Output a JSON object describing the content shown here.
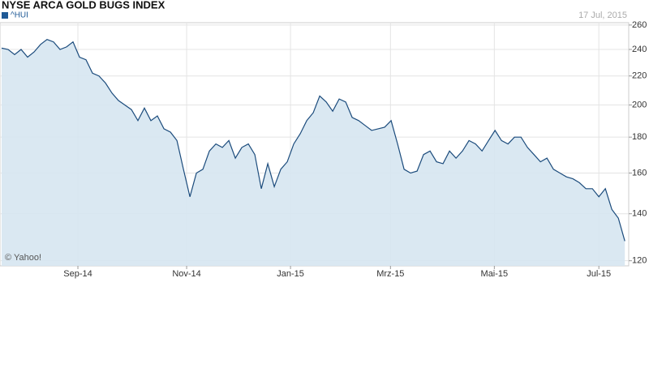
{
  "chart_data": {
    "type": "area",
    "title": "NYSE ARCA GOLD BUGS INDEX",
    "date_label": "17 Jul, 2015",
    "watermark": "© Yahoo!",
    "series": [
      {
        "name": "^HUI",
        "color": "#1b4b7c",
        "fill": "#d6e5f1",
        "values": [
          241,
          240,
          236,
          240,
          234,
          238,
          244,
          248,
          246,
          240,
          242,
          246,
          234,
          232,
          222,
          220,
          215,
          208,
          203,
          200,
          197,
          190,
          198,
          190,
          193,
          185,
          183,
          178,
          162,
          148,
          160,
          162,
          172,
          176,
          174,
          178,
          168,
          174,
          176,
          170,
          152,
          165,
          153,
          162,
          166,
          176,
          182,
          190,
          195,
          206,
          202,
          196,
          204,
          202,
          192,
          190,
          187,
          184,
          185,
          186,
          190,
          176,
          162,
          160,
          161,
          170,
          172,
          166,
          165,
          172,
          168,
          172,
          178,
          176,
          172,
          178,
          184,
          178,
          176,
          180,
          180,
          174,
          170,
          166,
          168,
          162,
          160,
          158,
          157,
          155,
          152,
          152,
          148,
          152,
          142,
          138,
          128
        ]
      }
    ],
    "xlim": [
      0,
      96.6
    ],
    "xticks": [
      {
        "value": 11.75,
        "label": "Sep-14"
      },
      {
        "value": 28.5,
        "label": "Nov-14"
      },
      {
        "value": 44.5,
        "label": "Jan-15"
      },
      {
        "value": 59.9,
        "label": "Mrz-15"
      },
      {
        "value": 75.9,
        "label": "Mai-15"
      },
      {
        "value": 92,
        "label": "Jul-15"
      }
    ],
    "ylim": [
      118,
      262
    ],
    "yticks": [
      120,
      140,
      160,
      180,
      200,
      220,
      240,
      260
    ],
    "log_scale": true,
    "grid": true
  }
}
